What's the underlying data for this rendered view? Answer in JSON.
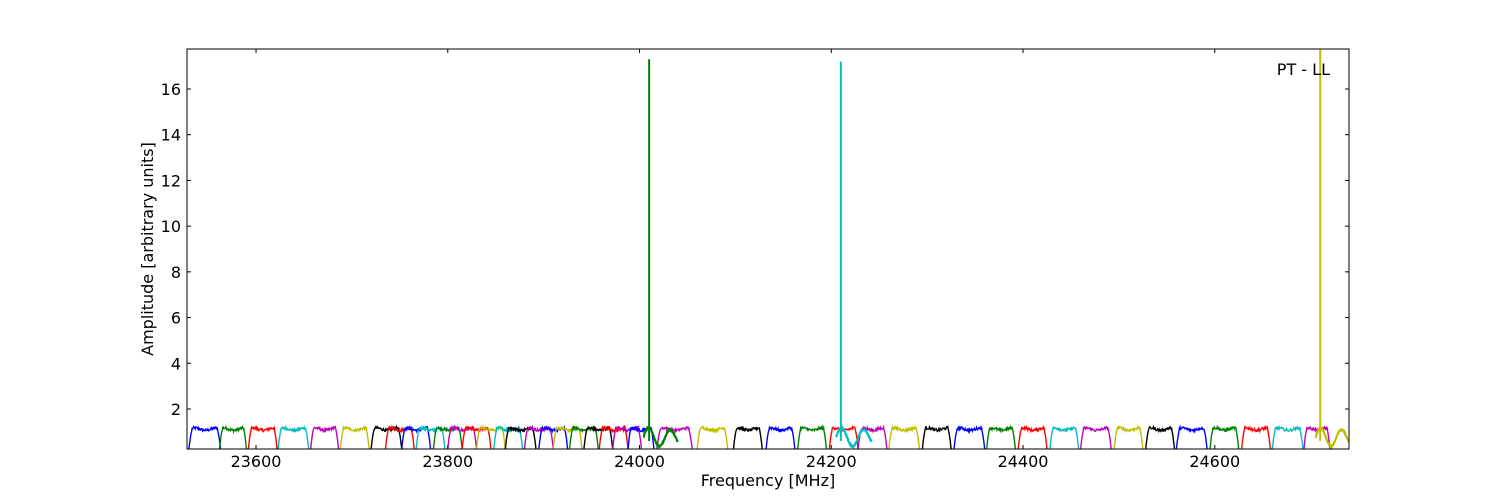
{
  "chart_data": {
    "type": "line",
    "title": "",
    "annotation": "PT - LL",
    "xlabel": "Frequency [MHz]",
    "ylabel": "Amplitude [arbitrary units]",
    "xlim": [
      23528,
      24740
    ],
    "ylim": [
      0.25,
      17.75
    ],
    "xticks": [
      23600,
      23800,
      24000,
      24200,
      24400,
      24600
    ],
    "yticks": [
      2,
      4,
      6,
      8,
      10,
      12,
      14,
      16
    ],
    "grid": false,
    "legend": "none",
    "channel_band_amplitude": 1.12,
    "channel_colors": [
      "#0000ff",
      "#008000",
      "#ff0000",
      "#00bfbf",
      "#bf00bf",
      "#bfbf00",
      "#000000"
    ],
    "series": [
      {
        "color": "#0000ff",
        "start": 23530,
        "end": 23563
      },
      {
        "color": "#008000",
        "start": 23562,
        "end": 23590
      },
      {
        "color": "#ff0000",
        "start": 23592,
        "end": 23622
      },
      {
        "color": "#00bfbf",
        "start": 23623,
        "end": 23655
      },
      {
        "color": "#bf00bf",
        "start": 23657,
        "end": 23686
      },
      {
        "color": "#bfbf00",
        "start": 23688,
        "end": 23718
      },
      {
        "color": "#000000",
        "start": 23720,
        "end": 23752
      },
      {
        "color": "#ff0000",
        "start": 23735,
        "end": 23765
      },
      {
        "color": "#0000ff",
        "start": 23752,
        "end": 23782
      },
      {
        "color": "#00bfbf",
        "start": 23767,
        "end": 23797
      },
      {
        "color": "#008000",
        "start": 23785,
        "end": 23815
      },
      {
        "color": "#bf00bf",
        "start": 23800,
        "end": 23830
      },
      {
        "color": "#ff0000",
        "start": 23815,
        "end": 23845
      },
      {
        "color": "#bfbf00",
        "start": 23830,
        "end": 23860
      },
      {
        "color": "#00bfbf",
        "start": 23848,
        "end": 23878
      },
      {
        "color": "#000000",
        "start": 23860,
        "end": 23892
      },
      {
        "color": "#bf00bf",
        "start": 23880,
        "end": 23910
      },
      {
        "color": "#0000ff",
        "start": 23895,
        "end": 23925
      },
      {
        "color": "#bfbf00",
        "start": 23910,
        "end": 23940
      },
      {
        "color": "#008000",
        "start": 23927,
        "end": 23957
      },
      {
        "color": "#000000",
        "start": 23942,
        "end": 23972
      },
      {
        "color": "#ff0000",
        "start": 23958,
        "end": 23988
      },
      {
        "color": "#bf00bf",
        "start": 23972,
        "end": 24002
      },
      {
        "color": "#0000ff",
        "start": 23988,
        "end": 24015
      },
      {
        "color": "#bf00bf",
        "start": 24018,
        "end": 24055
      },
      {
        "color": "#bfbf00",
        "start": 24060,
        "end": 24092
      },
      {
        "color": "#000000",
        "start": 24098,
        "end": 24128
      },
      {
        "color": "#0000ff",
        "start": 24132,
        "end": 24162
      },
      {
        "color": "#008000",
        "start": 24165,
        "end": 24195
      },
      {
        "color": "#ff0000",
        "start": 24198,
        "end": 24228
      },
      {
        "color": "#bf00bf",
        "start": 24228,
        "end": 24258
      },
      {
        "color": "#bfbf00",
        "start": 24260,
        "end": 24292
      },
      {
        "color": "#000000",
        "start": 24295,
        "end": 24325
      },
      {
        "color": "#0000ff",
        "start": 24328,
        "end": 24360
      },
      {
        "color": "#008000",
        "start": 24362,
        "end": 24392
      },
      {
        "color": "#ff0000",
        "start": 24395,
        "end": 24425
      },
      {
        "color": "#00bfbf",
        "start": 24428,
        "end": 24458
      },
      {
        "color": "#bf00bf",
        "start": 24460,
        "end": 24492
      },
      {
        "color": "#bfbf00",
        "start": 24495,
        "end": 24525
      },
      {
        "color": "#000000",
        "start": 24528,
        "end": 24558
      },
      {
        "color": "#0000ff",
        "start": 24560,
        "end": 24592
      },
      {
        "color": "#008000",
        "start": 24595,
        "end": 24625
      },
      {
        "color": "#ff0000",
        "start": 24628,
        "end": 24658
      },
      {
        "color": "#00bfbf",
        "start": 24660,
        "end": 24692
      },
      {
        "color": "#bf00bf",
        "start": 24693,
        "end": 24720
      }
    ],
    "spikes": [
      {
        "color": "#008000",
        "x": 24010,
        "peak": 17.3
      },
      {
        "color": "#00bfbf",
        "x": 24210,
        "peak": 17.2
      },
      {
        "color": "#bfbf00",
        "x": 24710,
        "peak": 17.75
      }
    ],
    "ringing": [
      {
        "color": "#008000",
        "start": 24004,
        "end": 24040
      },
      {
        "color": "#00bfbf",
        "start": 24205,
        "end": 24242
      },
      {
        "color": "#bfbf00",
        "start": 24705,
        "end": 24740
      }
    ]
  }
}
